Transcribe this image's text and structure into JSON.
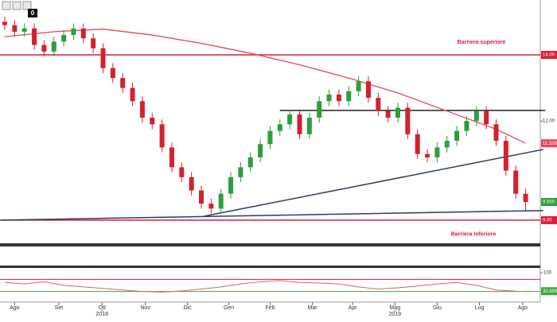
{
  "toolbar": {
    "badge": "0"
  },
  "chart_data": {
    "type": "candlestick",
    "categories": [
      null,
      null,
      null,
      null,
      null,
      null,
      null,
      null,
      null,
      null,
      null,
      null,
      null,
      null,
      null,
      null,
      null,
      null,
      null,
      null,
      null,
      null,
      null,
      null,
      null,
      null,
      null,
      null,
      null,
      null,
      null,
      null,
      null,
      null,
      null,
      null,
      null,
      null,
      null,
      null,
      null,
      null,
      null,
      null,
      null,
      null,
      null,
      null,
      null,
      null,
      null,
      null,
      null,
      null
    ],
    "open": [
      15.0,
      14.9,
      14.7,
      14.8,
      14.3,
      14.1,
      14.4,
      14.6,
      14.8,
      14.5,
      14.2,
      13.6,
      13.3,
      13.0,
      12.6,
      12.1,
      11.9,
      11.2,
      10.6,
      10.3,
      9.9,
      9.5,
      9.35,
      9.8,
      10.3,
      10.6,
      10.9,
      11.3,
      11.7,
      11.9,
      12.2,
      11.6,
      12.1,
      12.6,
      12.8,
      12.6,
      12.9,
      13.2,
      12.7,
      12.3,
      12.1,
      12.4,
      11.6,
      11.0,
      10.9,
      11.2,
      11.4,
      11.7,
      12.0,
      12.3,
      11.9,
      11.4,
      10.5,
      9.8
    ],
    "high": [
      15.15,
      15.05,
      14.95,
      14.95,
      14.45,
      14.55,
      14.75,
      14.95,
      14.95,
      14.65,
      14.35,
      13.75,
      13.45,
      13.15,
      12.75,
      12.25,
      12.05,
      11.35,
      10.75,
      10.45,
      10.05,
      9.65,
      9.95,
      10.45,
      10.75,
      11.05,
      11.45,
      11.85,
      12.05,
      12.35,
      12.35,
      12.25,
      12.75,
      12.95,
      12.95,
      13.05,
      13.35,
      13.35,
      12.85,
      12.45,
      12.55,
      12.55,
      11.75,
      11.15,
      11.35,
      11.55,
      11.85,
      12.15,
      12.45,
      12.45,
      12.05,
      11.55,
      10.65,
      9.95
    ],
    "low": [
      14.75,
      14.55,
      14.55,
      14.15,
      13.95,
      13.95,
      14.25,
      14.45,
      14.35,
      14.05,
      13.45,
      13.15,
      12.85,
      12.45,
      11.95,
      11.75,
      11.05,
      10.45,
      10.15,
      9.75,
      9.35,
      9.2,
      9.2,
      9.65,
      10.15,
      10.45,
      10.75,
      11.15,
      11.55,
      11.75,
      11.45,
      11.45,
      11.95,
      12.45,
      12.45,
      12.45,
      12.75,
      12.55,
      12.15,
      11.95,
      11.95,
      11.45,
      10.85,
      10.75,
      10.75,
      11.05,
      11.25,
      11.55,
      11.85,
      11.75,
      11.25,
      10.35,
      9.65,
      9.3
    ],
    "close": [
      14.9,
      14.7,
      14.8,
      14.3,
      14.1,
      14.4,
      14.6,
      14.8,
      14.5,
      14.2,
      13.6,
      13.3,
      13.0,
      12.6,
      12.1,
      11.9,
      11.2,
      10.6,
      10.3,
      9.9,
      9.5,
      9.35,
      9.8,
      10.3,
      10.6,
      10.9,
      11.3,
      11.7,
      11.9,
      12.2,
      11.6,
      12.1,
      12.6,
      12.8,
      12.6,
      12.9,
      13.2,
      12.7,
      12.3,
      12.1,
      12.4,
      11.6,
      11.0,
      10.9,
      11.2,
      11.4,
      11.7,
      12.0,
      12.3,
      11.9,
      11.4,
      10.5,
      9.8,
      9.55
    ],
    "up_color": "#2e9e3a",
    "down_color": "#d3212d",
    "last_price": {
      "value": 9.55,
      "label": "9.550"
    },
    "moving_average": {
      "color": "#e8455a",
      "x": [
        0,
        5,
        10,
        15,
        20,
        25,
        30,
        35,
        40,
        45,
        50,
        53
      ],
      "values": [
        14.55,
        14.7,
        14.78,
        14.6,
        14.35,
        14.05,
        13.7,
        13.3,
        12.85,
        12.3,
        11.75,
        11.3263
      ],
      "last_label": {
        "value": 11.3263,
        "label": "11.3263"
      }
    },
    "ylim": [
      8.3,
      15.66
    ],
    "yticks": [
      {
        "value": 12,
        "label": "12.00"
      }
    ],
    "barriers": [
      {
        "label": "Barriera superiore",
        "value": 14,
        "value_label": "14.00",
        "color": "#d81e3c"
      },
      {
        "label": "Barriera Inferiore",
        "value": 9,
        "value_label": "9.00",
        "color": "#d81e3c"
      }
    ],
    "resistance": {
      "x": [
        28,
        55
      ],
      "values": [
        12.32,
        12.32
      ],
      "color": "#222222"
    },
    "trendlines": [
      {
        "x": [
          -0.4,
          54.8
        ],
        "values": [
          9.0,
          9.29
        ],
        "color": "#2c3e5a"
      },
      {
        "x": [
          20.3,
          54.8
        ],
        "values": [
          9.12,
          11.14
        ],
        "color": "#2c3e5a"
      }
    ],
    "month_ticks": [
      {
        "value": 1,
        "label": "Ago"
      },
      {
        "value": 5.5,
        "label": "Set"
      },
      {
        "value": 9.9,
        "label": "Ott"
      },
      {
        "value": 14.3,
        "label": "Nov"
      },
      {
        "value": 18.6,
        "label": "Dic"
      },
      {
        "value": 22.8,
        "label": "Gen"
      },
      {
        "value": 27.0,
        "label": "Feb"
      },
      {
        "value": 31.3,
        "label": "Mar"
      },
      {
        "value": 35.4,
        "label": "Apr"
      },
      {
        "value": 39.7,
        "label": "Mag"
      },
      {
        "value": 44.0,
        "label": "Giu"
      },
      {
        "value": 48.3,
        "label": "Lug"
      },
      {
        "value": 52.7,
        "label": "Ago"
      }
    ],
    "year_ticks": [
      {
        "value": 9.9,
        "label": "2018"
      },
      {
        "value": 39.7,
        "label": "2019"
      }
    ],
    "oscillator": {
      "color": "#e06070",
      "x": [
        0,
        2,
        4,
        6,
        8,
        10,
        12,
        14,
        16,
        18,
        20,
        22,
        24,
        26,
        28,
        30,
        32,
        34,
        36,
        38,
        40,
        42,
        44,
        46,
        48,
        50,
        52
      ],
      "values": [
        60,
        55,
        62,
        50,
        45,
        40,
        35,
        30,
        28,
        32,
        38,
        45,
        55,
        62,
        66,
        60,
        58,
        55,
        45,
        38,
        42,
        48,
        55,
        60,
        50,
        35,
        30.8997
      ],
      "ylim": [
        0,
        100
      ],
      "yticks": [
        100
      ],
      "levels": [
        {
          "value": 70,
          "color": "#d81e3c"
        },
        {
          "value": 30,
          "color": "#3aa83a"
        }
      ],
      "last_label": {
        "value": 30.8997,
        "label": "30.8997"
      }
    }
  }
}
